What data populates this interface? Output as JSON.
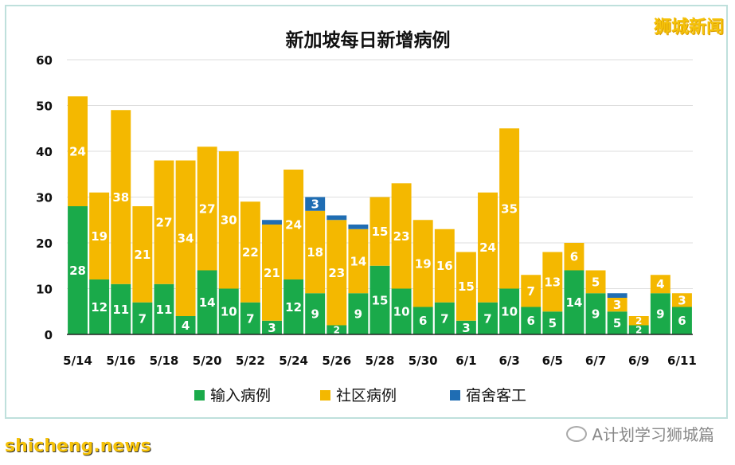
{
  "brand": "狮城新闻",
  "footer_left": "shicheng.news",
  "footer_right": "A计划学习狮城篇",
  "colors": {
    "import": "#1aaa4a",
    "community": "#f4b800",
    "dorm": "#1f6db3"
  },
  "chart_data": {
    "type": "bar",
    "stacked": true,
    "title": "新加坡每日新增病例",
    "ylim": [
      0,
      60
    ],
    "yticks": [
      0,
      10,
      20,
      30,
      40,
      50,
      60
    ],
    "grid": true,
    "legend_position": "bottom",
    "categories": [
      "5/14",
      "5/15",
      "5/16",
      "5/17",
      "5/18",
      "5/19",
      "5/20",
      "5/21",
      "5/22",
      "5/23",
      "5/24",
      "5/25",
      "5/26",
      "5/27",
      "5/28",
      "5/29",
      "5/30",
      "5/31",
      "6/1",
      "6/2",
      "6/3",
      "6/4",
      "6/5",
      "6/6",
      "6/7",
      "6/8",
      "6/9",
      "6/10",
      "6/11"
    ],
    "xtick_labels": [
      "5/14",
      "5/16",
      "5/18",
      "5/20",
      "5/22",
      "5/24",
      "5/26",
      "5/28",
      "5/30",
      "6/1",
      "6/3",
      "6/5",
      "6/7",
      "6/9",
      "6/11"
    ],
    "series": [
      {
        "name": "输入病例",
        "values": [
          28,
          12,
          11,
          7,
          11,
          4,
          14,
          10,
          7,
          3,
          12,
          9,
          2,
          9,
          15,
          10,
          6,
          7,
          3,
          7,
          10,
          6,
          5,
          14,
          9,
          5,
          2,
          9,
          6
        ]
      },
      {
        "name": "社区病例",
        "values": [
          24,
          19,
          38,
          21,
          27,
          34,
          27,
          30,
          22,
          21,
          24,
          18,
          23,
          14,
          15,
          23,
          19,
          16,
          15,
          24,
          35,
          7,
          13,
          6,
          5,
          3,
          2,
          4,
          3
        ]
      },
      {
        "name": "宿舍客工",
        "values": [
          0,
          0,
          0,
          0,
          0,
          0,
          0,
          0,
          0,
          1,
          0,
          3,
          1,
          1,
          0,
          0,
          0,
          0,
          0,
          0,
          0,
          0,
          0,
          0,
          0,
          1,
          0,
          0,
          0
        ]
      }
    ]
  }
}
